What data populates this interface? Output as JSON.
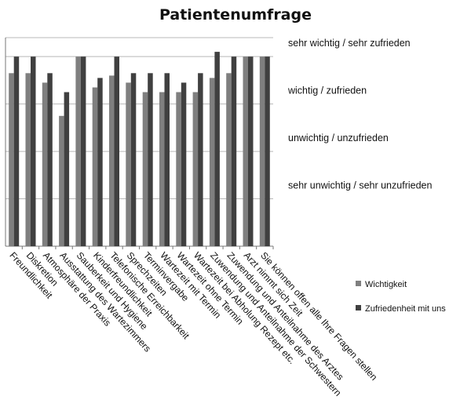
{
  "chart_data": {
    "type": "bar",
    "title": "Patientenumfrage",
    "categories": [
      "Freundlichkeit",
      "Diskretion",
      "Atmosphäre der Praxis",
      "Ausstattung des Wartezimmers",
      "Sauberkeit und Hygiene",
      "Kinderfreundlichkeit",
      "Telefonische Erreichbarkeit",
      "Sprechzeiten",
      "Terminvergabe",
      "Wartezeit mit Termin",
      "Wartezeit ohne Termin",
      "Wartezeit bei Abholung Rezept etc.",
      "Zuwendung und Anteilnahme der Schwestern",
      "Zuwendung und Anteilnahme des Arztes",
      "Arzt nimmt sich Zeit",
      "Sie können offen alle Ihre Fragen stellen"
    ],
    "series": [
      {
        "name": "Wichtigkeit",
        "color": "#7f7f7f",
        "values": [
          3.65,
          3.65,
          3.45,
          2.75,
          4.0,
          3.35,
          3.6,
          3.45,
          3.25,
          3.25,
          3.25,
          3.25,
          3.55,
          3.65,
          4.0,
          4.0
        ]
      },
      {
        "name": "Zufriedenheit mit uns",
        "color": "#404040",
        "values": [
          4.0,
          4.0,
          3.65,
          3.25,
          4.0,
          3.55,
          4.0,
          3.65,
          3.65,
          3.65,
          3.45,
          3.65,
          4.1,
          4.0,
          4.0,
          4.0
        ]
      }
    ],
    "y_levels": [
      {
        "value": 1,
        "label": "sehr unwichtig / sehr unzufrieden"
      },
      {
        "value": 2,
        "label": "unwichtig / unzufrieden"
      },
      {
        "value": 3,
        "label": "wichtig  / zufrieden"
      },
      {
        "value": 4,
        "label": "sehr wichtig  / sehr zufrieden"
      }
    ],
    "ylim": [
      0,
      4.4
    ],
    "grid": true,
    "legend_position": "right"
  }
}
